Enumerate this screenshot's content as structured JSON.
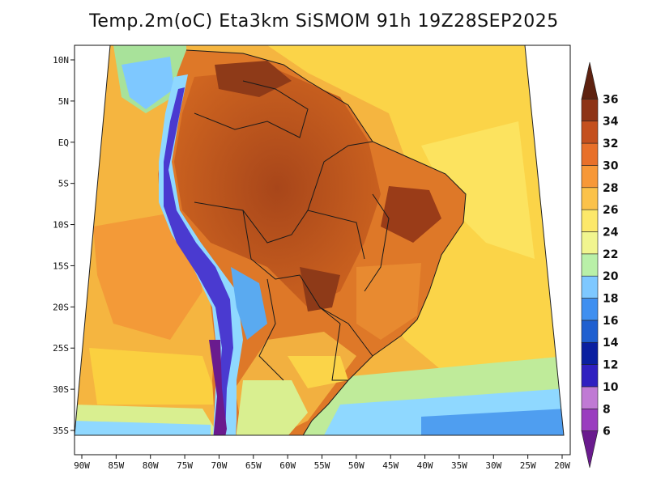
{
  "title": "Temp.2m(oC) Eta3km SiSMOM 91h 19Z28SEP2025",
  "axes": {
    "lon_labels": [
      "90W",
      "85W",
      "80W",
      "75W",
      "70W",
      "65W",
      "60W",
      "55W",
      "50W",
      "45W",
      "40W",
      "35W",
      "30W",
      "25W",
      "20W"
    ],
    "lat_labels": [
      "10N",
      "5N",
      "EQ",
      "5S",
      "10S",
      "15S",
      "20S",
      "25S",
      "30S",
      "35S"
    ],
    "lon_range": [
      -91,
      -20
    ],
    "lat_range": [
      -38,
      12
    ]
  },
  "colorbar": {
    "labels": [
      "6",
      "8",
      "10",
      "12",
      "14",
      "16",
      "18",
      "20",
      "22",
      "24",
      "26",
      "28",
      "30",
      "32",
      "34",
      "36"
    ],
    "colors": [
      "#6a1b8e",
      "#9a3dbf",
      "#c07ad4",
      "#3020c0",
      "#0a1fa0",
      "#1f5fd0",
      "#3f8ff0",
      "#7ec8ff",
      "#b9f0a8",
      "#f1f58f",
      "#fce86a",
      "#fbc24a",
      "#f79838",
      "#e8702a",
      "#c4501e",
      "#8e3416",
      "#5e2210"
    ]
  },
  "regions": {
    "ocean_warm_color": "#f6b23f",
    "ocean_mid_color": "#fbd348",
    "ocean_cool_color": "#d9ef90",
    "land_hot_color": "#c25a1c",
    "land_warm_color": "#de7828",
    "land_very_hot_color": "#8e3a18",
    "andes_cold_color": "#4a3ad0",
    "andes_cool_color": "#8fd8ff",
    "south_cool_color": "#bfeb9a",
    "south_cold_color": "#5aaaf0"
  }
}
